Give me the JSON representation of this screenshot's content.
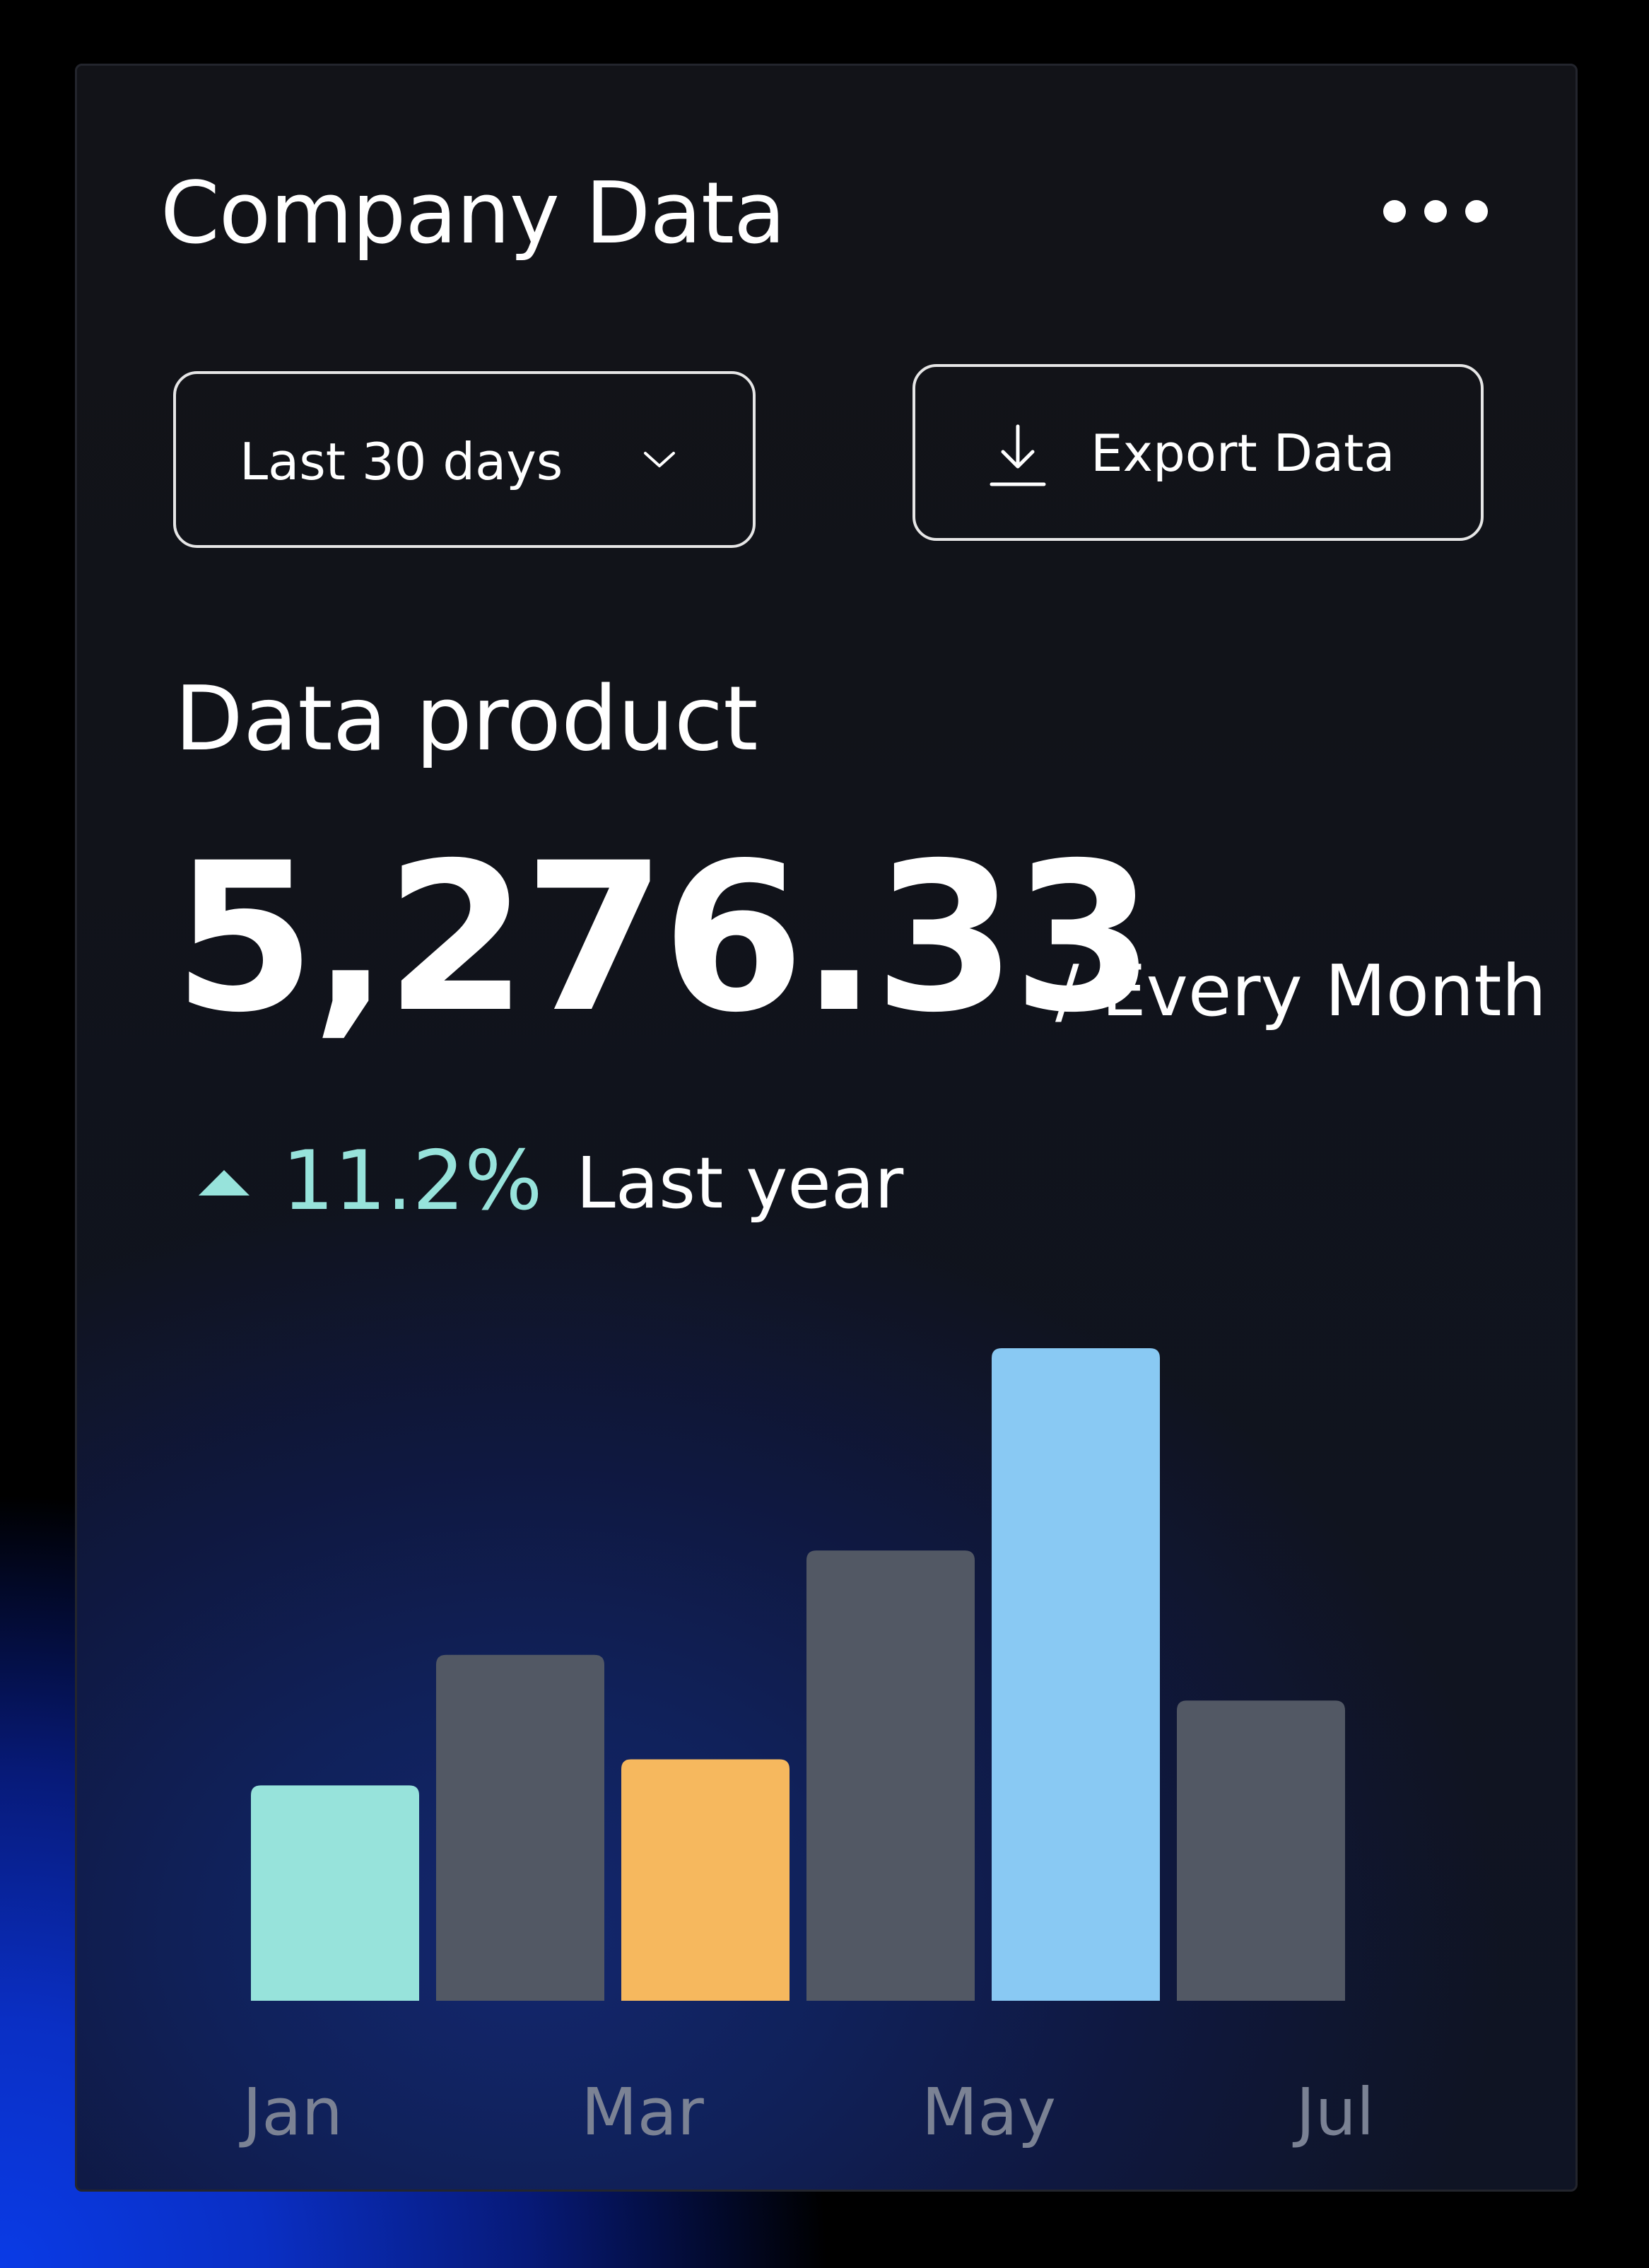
{
  "header": {
    "title": "Company Data"
  },
  "controls": {
    "range_label": "Last 30 days",
    "export_label": "Export Data"
  },
  "metric": {
    "section_title": "Data product",
    "value": "5,276.33",
    "unit": "/ Every Month",
    "change": "11.2%",
    "change_period": "Last year",
    "change_color": "#97e3db"
  },
  "icons": {
    "menu": "more-horizontal-icon",
    "dropdown": "chevron-down-icon",
    "export": "download-icon",
    "trend": "triangle-up-icon"
  },
  "chart_data": {
    "type": "bar",
    "categories": [
      "",
      "",
      "",
      "",
      "",
      ""
    ],
    "values": [
      33,
      53,
      37,
      69,
      100,
      46
    ],
    "colors": [
      "#97e3db",
      "#525864",
      "#f6b85e",
      "#525864",
      "#89c9f3",
      "#525864"
    ],
    "tick_labels": [
      "Jan",
      "Mar",
      "May",
      "Jul"
    ],
    "ylim": [
      0,
      100
    ],
    "grid": false,
    "legend": "none",
    "xlabel": "",
    "ylabel": ""
  }
}
